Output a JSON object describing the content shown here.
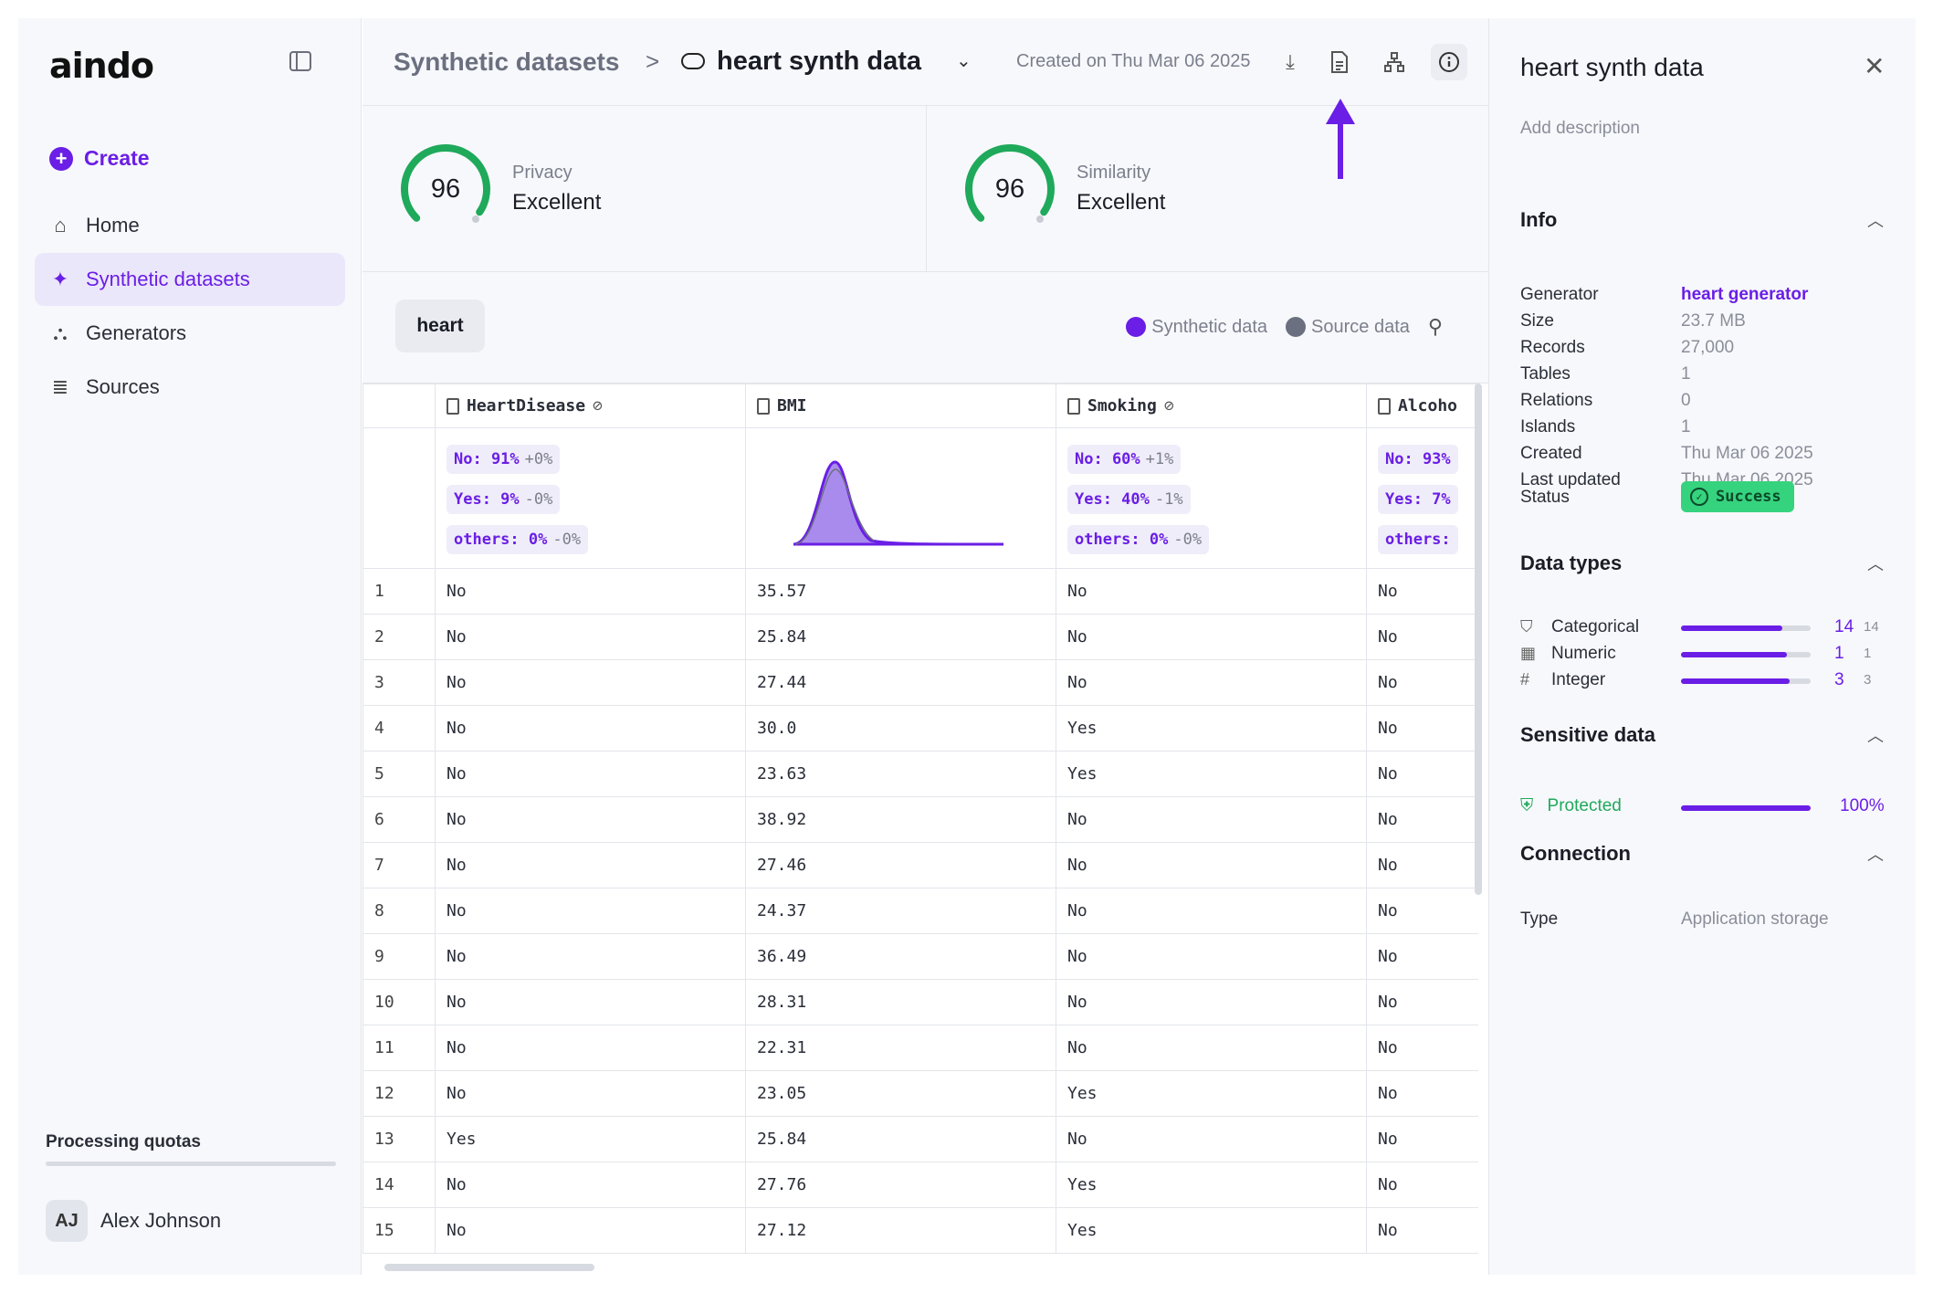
{
  "app": {
    "logo": "aindo"
  },
  "sidebar": {
    "create_label": "Create",
    "items": [
      {
        "label": "Home",
        "icon": "home-icon"
      },
      {
        "label": "Synthetic datasets",
        "icon": "sparkle-icon",
        "active": true
      },
      {
        "label": "Generators",
        "icon": "shapes-icon"
      },
      {
        "label": "Sources",
        "icon": "database-icon"
      }
    ],
    "quota_label": "Processing quotas",
    "user": {
      "initials": "AJ",
      "name": "Alex Johnson"
    }
  },
  "header": {
    "breadcrumb_root": "Synthetic datasets",
    "separator": ">",
    "dataset_name": "heart synth data",
    "created": "Created on Thu Mar 06 2025"
  },
  "scores": {
    "privacy": {
      "value": "96",
      "label": "Privacy",
      "rating": "Excellent",
      "fraction": 0.96
    },
    "similarity": {
      "value": "96",
      "label": "Similarity",
      "rating": "Excellent",
      "fraction": 0.96
    }
  },
  "toolbar": {
    "table_tab": "heart",
    "legend_synthetic": "Synthetic data",
    "legend_source": "Source data"
  },
  "table": {
    "columns": [
      "HeartDisease",
      "BMI",
      "Smoking",
      "Alcoho"
    ],
    "summary": {
      "HeartDisease": [
        {
          "label": "No: 91%",
          "delta": "+0%"
        },
        {
          "label": "Yes: 9%",
          "delta": "-0%"
        },
        {
          "label": "others: 0%",
          "delta": "-0%"
        }
      ],
      "Smoking": [
        {
          "label": "No: 60%",
          "delta": "+1%"
        },
        {
          "label": "Yes: 40%",
          "delta": "-1%"
        },
        {
          "label": "others: 0%",
          "delta": "-0%"
        }
      ],
      "Alcohol": [
        {
          "label": "No: 93%"
        },
        {
          "label": "Yes: 7%"
        },
        {
          "label": "others:"
        }
      ]
    },
    "rows": [
      [
        "1",
        "No",
        "35.57",
        "No",
        "No"
      ],
      [
        "2",
        "No",
        "25.84",
        "No",
        "No"
      ],
      [
        "3",
        "No",
        "27.44",
        "No",
        "No"
      ],
      [
        "4",
        "No",
        "30.0",
        "Yes",
        "No"
      ],
      [
        "5",
        "No",
        "23.63",
        "Yes",
        "No"
      ],
      [
        "6",
        "No",
        "38.92",
        "No",
        "No"
      ],
      [
        "7",
        "No",
        "27.46",
        "No",
        "No"
      ],
      [
        "8",
        "No",
        "24.37",
        "No",
        "No"
      ],
      [
        "9",
        "No",
        "36.49",
        "No",
        "No"
      ],
      [
        "10",
        "No",
        "28.31",
        "No",
        "No"
      ],
      [
        "11",
        "No",
        "22.31",
        "No",
        "No"
      ],
      [
        "12",
        "No",
        "23.05",
        "Yes",
        "No"
      ],
      [
        "13",
        "Yes",
        "25.84",
        "No",
        "No"
      ],
      [
        "14",
        "No",
        "27.76",
        "Yes",
        "No"
      ],
      [
        "15",
        "No",
        "27.12",
        "Yes",
        "No"
      ]
    ]
  },
  "panel": {
    "title": "heart synth data",
    "description_placeholder": "Add description",
    "info_title": "Info",
    "info": [
      {
        "key": "Generator",
        "value": "heart generator",
        "link": true
      },
      {
        "key": "Size",
        "value": "23.7 MB"
      },
      {
        "key": "Records",
        "value": "27,000"
      },
      {
        "key": "Tables",
        "value": "1"
      },
      {
        "key": "Relations",
        "value": "0"
      },
      {
        "key": "Islands",
        "value": "1"
      },
      {
        "key": "Created",
        "value": "Thu Mar 06 2025"
      },
      {
        "key": "Last updated",
        "value": "Thu Mar 06 2025"
      }
    ],
    "status_key": "Status",
    "status_value": "Success",
    "datatypes_title": "Data types",
    "datatypes": [
      {
        "label": "Categorical",
        "icon": "bookmark-icon",
        "count": "14",
        "total": "14",
        "fraction": 0.78
      },
      {
        "label": "Numeric",
        "icon": "calculator-icon",
        "count": "1",
        "total": "1",
        "fraction": 0.82
      },
      {
        "label": "Integer",
        "icon": "hash-icon",
        "count": "3",
        "total": "3",
        "fraction": 0.84
      }
    ],
    "sensitive_title": "Sensitive data",
    "sensitive_label": "Protected",
    "sensitive_pct": "100%",
    "connection_title": "Connection",
    "connection_key": "Type",
    "connection_value": "Application storage"
  },
  "colors": {
    "accent": "#6a1ee6",
    "success": "#36d37e",
    "gauge": "#1fa95b",
    "source": "#6b7080"
  }
}
